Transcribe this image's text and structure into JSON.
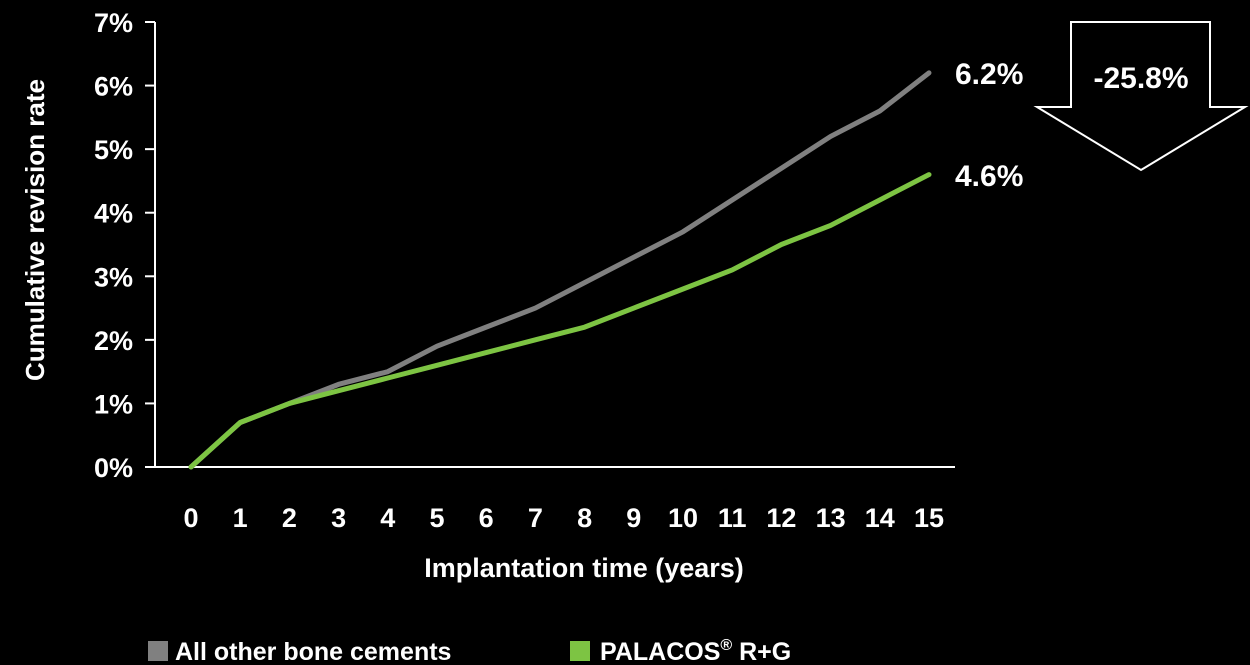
{
  "chart_data": {
    "type": "line",
    "title": "",
    "xlabel": "Implantation time (years)",
    "ylabel": "Cumulative revision rate",
    "x": [
      0,
      1,
      2,
      3,
      4,
      5,
      6,
      7,
      8,
      9,
      10,
      11,
      12,
      13,
      14,
      15
    ],
    "x_tick_labels": [
      "0",
      "1",
      "2",
      "3",
      "4",
      "5",
      "6",
      "7",
      "8",
      "9",
      "10",
      "11",
      "12",
      "13",
      "14",
      "15"
    ],
    "ylim": [
      0,
      7
    ],
    "y_ticks": [
      0,
      1,
      2,
      3,
      4,
      5,
      6,
      7
    ],
    "y_tick_labels": [
      "0%",
      "1%",
      "2%",
      "3%",
      "4%",
      "5%",
      "6%",
      "7%"
    ],
    "grid": false,
    "legend_position": "bottom",
    "series": [
      {
        "name": "All other bone cements",
        "color": "#808080",
        "values": [
          0,
          0.7,
          1.0,
          1.3,
          1.5,
          1.9,
          2.2,
          2.5,
          2.9,
          3.3,
          3.7,
          4.2,
          4.7,
          5.2,
          5.6,
          6.2
        ],
        "end_label": "6.2%"
      },
      {
        "name": "PALACOS",
        "name_superscript": "®",
        "name_suffix": " R+G",
        "color": "#7dc443",
        "values": [
          0,
          0.7,
          1.0,
          1.2,
          1.4,
          1.6,
          1.8,
          2.0,
          2.2,
          2.5,
          2.8,
          3.1,
          3.5,
          3.8,
          4.2,
          4.6
        ],
        "end_label": "4.6%"
      }
    ],
    "annotation": {
      "label": "-25.8%",
      "shape": "down-arrow"
    }
  }
}
